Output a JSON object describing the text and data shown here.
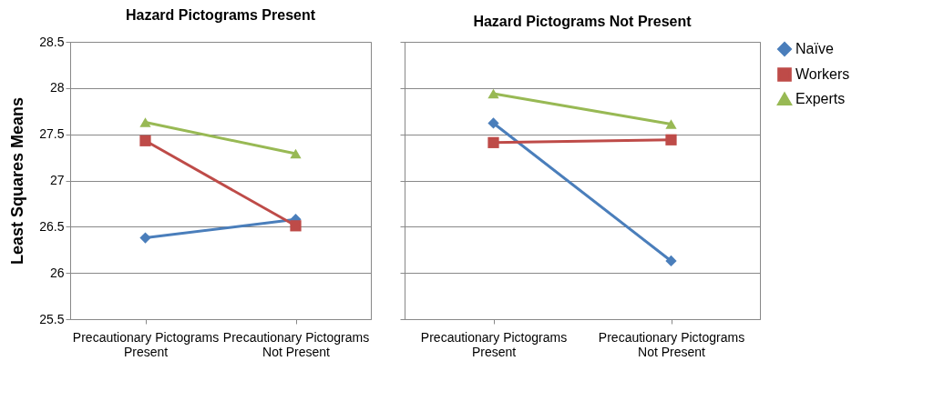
{
  "chart_data": [
    {
      "type": "line",
      "title": "Hazard Pictograms Present",
      "ylabel": "Least Squares Means",
      "legend": "right",
      "categories": [
        "Precautionary Pictograms Present",
        "Precautionary Pictograms Not Present"
      ],
      "ylim": [
        25.5,
        28.5
      ],
      "yticks": [
        25.5,
        26,
        26.5,
        27,
        27.5,
        28,
        28.5
      ],
      "grid": "y",
      "series": [
        {
          "name": "Naïve",
          "color": "#4a7ebb",
          "marker": "diamond",
          "values": [
            26.38,
            26.58
          ]
        },
        {
          "name": "Workers",
          "color": "#be4b48",
          "marker": "square",
          "values": [
            27.43,
            26.51
          ]
        },
        {
          "name": "Experts",
          "color": "#98b954",
          "marker": "triangle",
          "values": [
            27.63,
            27.29
          ]
        }
      ]
    },
    {
      "type": "line",
      "title": "Hazard Pictograms Not Present",
      "categories": [
        "Precautionary Pictograms Present",
        "Precautionary Pictograms Not Present"
      ],
      "ylim": [
        25.5,
        28.5
      ],
      "yticks": [
        25.5,
        26,
        26.5,
        27,
        27.5,
        28,
        28.5
      ],
      "tick_labels": "x",
      "grid": "y",
      "legend": "right",
      "series": [
        {
          "name": "Naïve",
          "color": "#4a7ebb",
          "marker": "diamond",
          "values": [
            27.62,
            26.13
          ]
        },
        {
          "name": "Workers",
          "color": "#be4b48",
          "marker": "square",
          "values": [
            27.41,
            27.44
          ]
        },
        {
          "name": "Experts",
          "color": "#98b954",
          "marker": "triangle",
          "values": [
            27.94,
            27.61
          ]
        }
      ]
    }
  ]
}
